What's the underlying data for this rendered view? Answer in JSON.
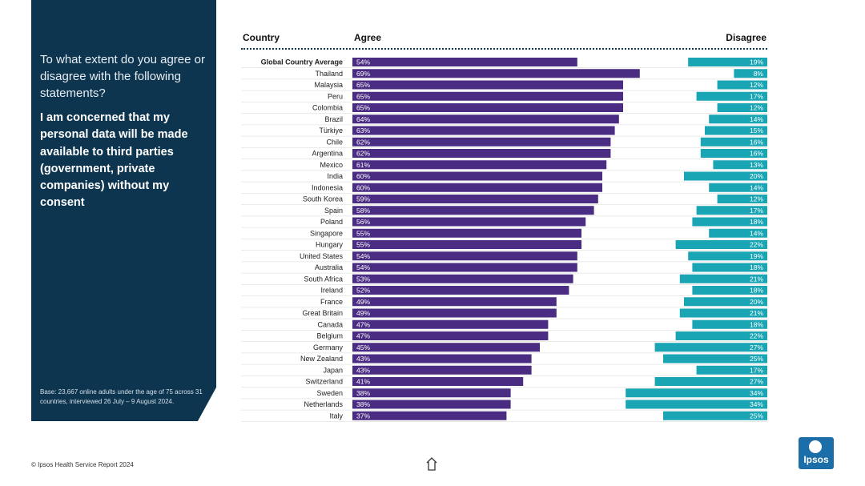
{
  "panel": {
    "question": "To what extent do you agree or disagree with the following statements?",
    "statement": "I am concerned that my personal data will be made available to third parties (government, private companies) without my consent",
    "base_note": "Base: 23,667 online adults under the age of 75 across 31 countries, interviewed 26 July – 9 August 2024."
  },
  "headers": {
    "country": "Country",
    "agree": "Agree",
    "disagree": "Disagree"
  },
  "footer": {
    "source": "© Ipsos Health Service Report 2024",
    "logo": "Ipsos"
  },
  "colors": {
    "agree": "#4a2c82",
    "disagree": "#1aa5b5",
    "panel": "#0d3550"
  },
  "chart_data": {
    "type": "bar",
    "orientation": "horizontal-diverging",
    "title": "I am concerned that my personal data will be made available to third parties (government, private companies) without my consent",
    "categories": [
      "Global Country Average",
      "Thailand",
      "Malaysia",
      "Peru",
      "Colombia",
      "Brazil",
      "Türkiye",
      "Chile",
      "Argentina",
      "Mexico",
      "India",
      "Indonesia",
      "South Korea",
      "Spain",
      "Poland",
      "Singapore",
      "Hungary",
      "United States",
      "Australia",
      "South Africa",
      "Ireland",
      "France",
      "Great Britain",
      "Canada",
      "Belgium",
      "Germany",
      "New Zealand",
      "Japan",
      "Switzerland",
      "Sweden",
      "Netherlands",
      "Italy"
    ],
    "series": [
      {
        "name": "Agree",
        "values": [
          54,
          69,
          65,
          65,
          65,
          64,
          63,
          62,
          62,
          61,
          60,
          60,
          59,
          58,
          56,
          55,
          55,
          54,
          54,
          53,
          52,
          49,
          49,
          47,
          47,
          45,
          43,
          43,
          41,
          38,
          38,
          37
        ]
      },
      {
        "name": "Disagree",
        "values": [
          19,
          8,
          12,
          17,
          12,
          14,
          15,
          16,
          16,
          13,
          20,
          14,
          12,
          17,
          18,
          14,
          22,
          19,
          18,
          21,
          18,
          20,
          21,
          18,
          22,
          27,
          25,
          17,
          27,
          34,
          34,
          25
        ]
      }
    ],
    "value_suffix": "%",
    "xlabel": "",
    "ylabel": ""
  }
}
